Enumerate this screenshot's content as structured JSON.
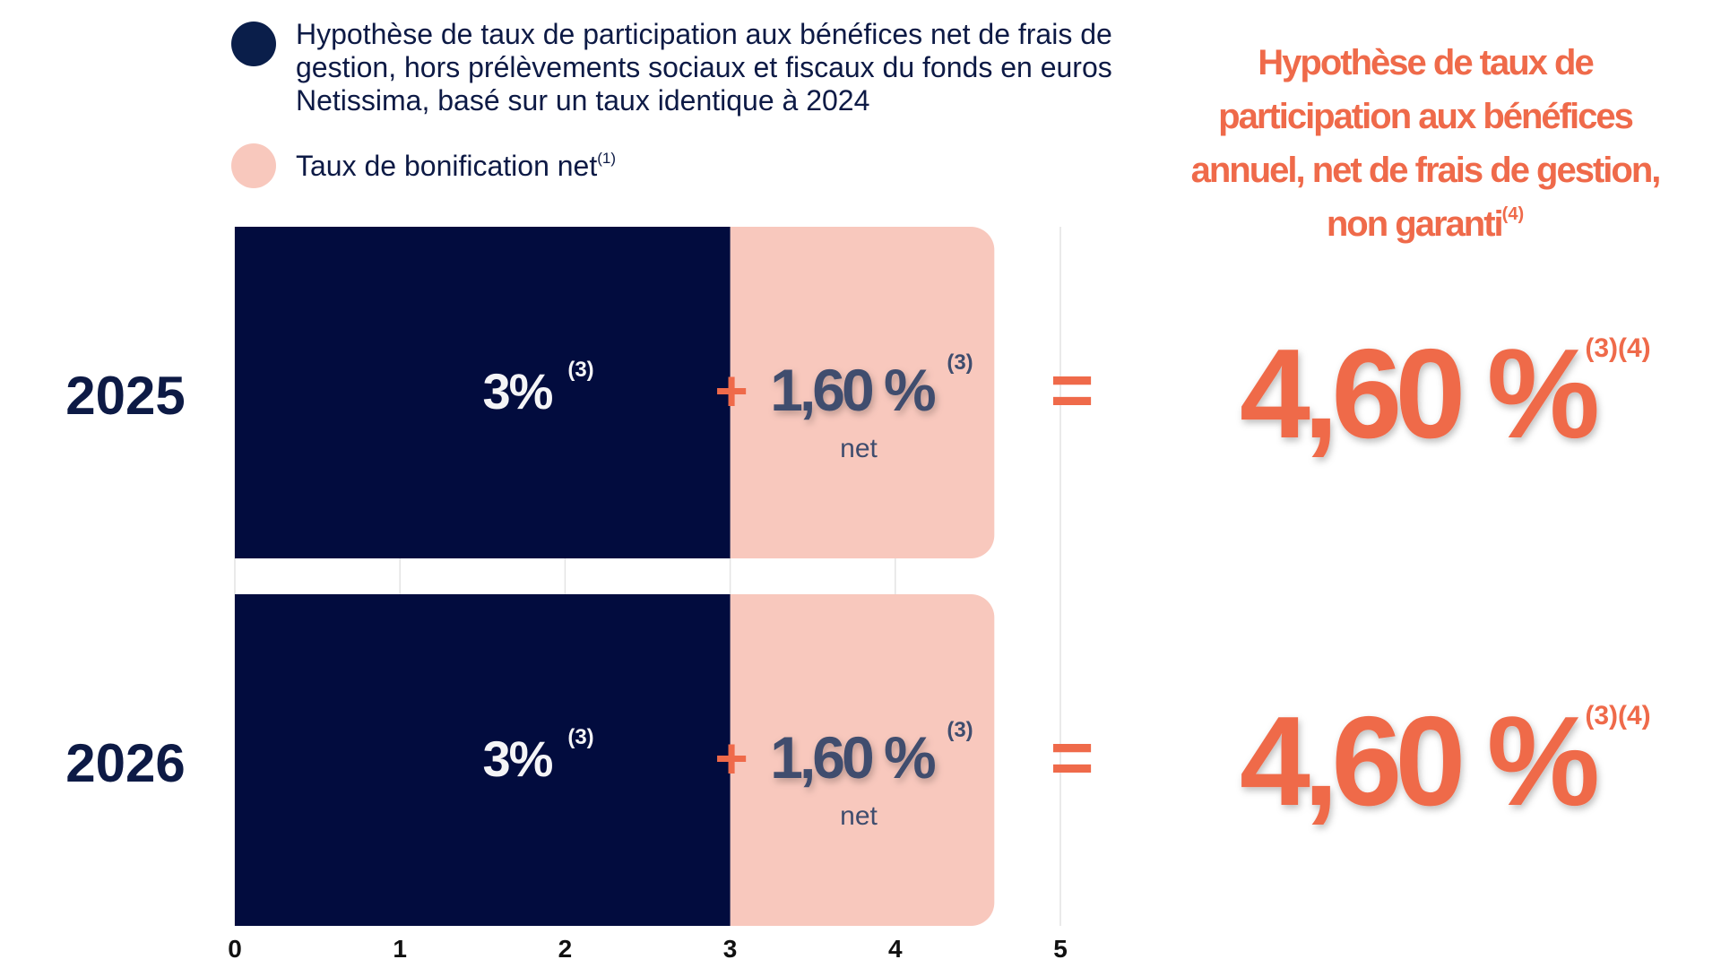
{
  "legend": {
    "items": [
      {
        "label": "Hypothèse de taux de participation aux bénéfices net de frais de gestion, hors prélèvements sociaux et fiscaux du fonds en euros Netissima, basé sur un taux identique à 2024",
        "sup": "",
        "color": "#0a1e4a"
      },
      {
        "label": "Taux de bonification net",
        "sup": "(1)",
        "color": "#f8c8bd"
      }
    ]
  },
  "right_title": {
    "text": "Hypothèse de taux de participation aux bénéfices annuel, net de frais de gestion, non garanti",
    "sup": "(4)"
  },
  "colors": {
    "base": "#020c3e",
    "bonus": "#f8c8bd",
    "accent": "#ef6a4a",
    "year": "#0d1a45",
    "bonus_text": "#3f4d6e",
    "grid": "#e4e4e4"
  },
  "chart_data": {
    "type": "bar",
    "orientation": "horizontal",
    "stacked": true,
    "categories": [
      "2025",
      "2026"
    ],
    "series": [
      {
        "name": "Hypothèse de taux de participation aux bénéfices net de frais de gestion, hors prélèvements sociaux et fiscaux du fonds en euros Netissima, basé sur un taux identique à 2024",
        "values": [
          3,
          3
        ]
      },
      {
        "name": "Taux de bonification net",
        "values": [
          1.6,
          1.6
        ]
      }
    ],
    "xlim": [
      0,
      5
    ],
    "xticks": [
      "0",
      "1",
      "2",
      "3",
      "4",
      "5"
    ],
    "grid": true,
    "legend_position": "top",
    "annotations": [
      {
        "category": "2025",
        "base_label": "3%",
        "base_sup": "(3)",
        "plus": "+",
        "bonus_label": "1,60 %",
        "bonus_sup": "(3)",
        "bonus_sub": "net",
        "equals": "=",
        "total_label": "4,60 %",
        "total_sup": "(3)(4)"
      },
      {
        "category": "2026",
        "base_label": "3%",
        "base_sup": "(3)",
        "plus": "+",
        "bonus_label": "1,60 %",
        "bonus_sup": "(3)",
        "bonus_sub": "net",
        "equals": "=",
        "total_label": "4,60 %",
        "total_sup": "(3)(4)"
      }
    ]
  }
}
